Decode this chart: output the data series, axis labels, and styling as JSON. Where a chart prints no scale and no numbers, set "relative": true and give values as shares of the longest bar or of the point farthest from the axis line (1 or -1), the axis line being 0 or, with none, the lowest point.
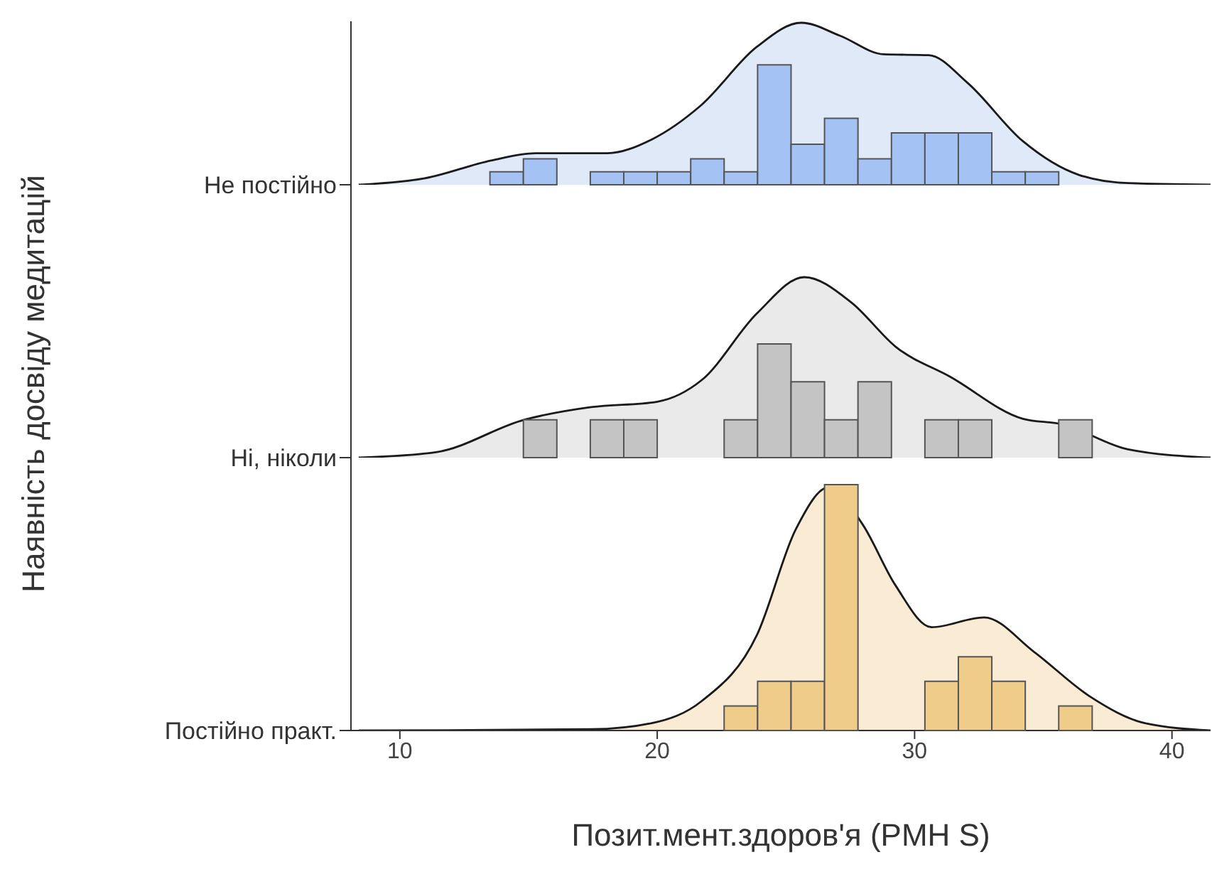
{
  "chart_data": [
    {
      "type": "area",
      "relative": true,
      "xlim": [
        8.1,
        41.5
      ],
      "tick_labels": "y",
      "ylabel": "Наявність досвіду медитацій",
      "series": [
        {
          "name": "Не постійно",
          "type": "area",
          "color": "#dae5f7",
          "x": [
            8.4,
            10.97,
            13.55,
            15.27,
            18.06,
            19.79,
            21.7,
            23.86,
            25.6,
            27.1,
            28.8,
            30.55,
            32.05,
            34.2,
            36.4,
            38.3,
            41.5
          ],
          "values": [
            0,
            0.04,
            0.15,
            0.195,
            0.195,
            0.28,
            0.49,
            0.85,
            1,
            0.92,
            0.805,
            0.8,
            0.63,
            0.27,
            0.06,
            0.01,
            0
          ]
        },
        {
          "type": "histogram",
          "color": "#a4c2f4",
          "bins": [
            12.2,
            13.5,
            14.8,
            16.1,
            17.4,
            18.7,
            20,
            21.3,
            22.6,
            23.9,
            25.2,
            26.5,
            27.8,
            29.1,
            30.4,
            31.7,
            33,
            34.3,
            35.6,
            36.9,
            38.2
          ],
          "values": [
            0,
            0.08,
            0.16,
            0,
            0.08,
            0.08,
            0.08,
            0.16,
            0.08,
            0.74,
            0.25,
            0.41,
            0.16,
            0.32,
            0.32,
            0.32,
            0.08,
            0.08,
            0,
            0
          ]
        }
      ]
    },
    {
      "type": "area",
      "relative": true,
      "xlim": [
        8.1,
        41.5
      ],
      "tick_labels": "y",
      "series": [
        {
          "name": "Ні, ніколи",
          "type": "area",
          "color": "#e6e6e6",
          "x": [
            8.4,
            11.4,
            14.84,
            17.43,
            20.0,
            21.73,
            23.88,
            25.71,
            27.54,
            29.26,
            31.42,
            34.21,
            35.72,
            38.3,
            41.5
          ],
          "values": [
            0,
            0.03,
            0.21,
            0.28,
            0.31,
            0.43,
            0.8,
            1,
            0.86,
            0.615,
            0.445,
            0.215,
            0.185,
            0.046,
            0
          ]
        },
        {
          "type": "histogram",
          "color": "#c4c4c4",
          "bins": [
            12.2,
            13.5,
            14.8,
            16.1,
            17.4,
            18.7,
            20,
            21.3,
            22.6,
            23.9,
            25.2,
            26.5,
            27.8,
            29.1,
            30.4,
            31.7,
            33,
            34.3,
            35.6,
            36.9,
            38.2
          ],
          "values": [
            0,
            0,
            0.21,
            0,
            0.21,
            0.21,
            0,
            0,
            0.21,
            0.63,
            0.42,
            0.21,
            0.42,
            0,
            0.21,
            0.21,
            0,
            0,
            0.21,
            0
          ]
        }
      ]
    },
    {
      "type": "area",
      "relative": true,
      "xlim": [
        8.1,
        41.5
      ],
      "xticks": [
        10,
        20,
        30,
        40
      ],
      "xlabel": "Позит.мент.здоров'я (PMH S)",
      "series": [
        {
          "name": "Постійно практ.",
          "type": "area",
          "color": "#f8e8cc",
          "x": [
            8.4,
            17.43,
            19.79,
            21.73,
            23.88,
            25.39,
            26.68,
            27.97,
            29.26,
            30.66,
            32.7,
            34.64,
            36.79,
            38.95,
            41.5
          ],
          "values": [
            0,
            0.005,
            0.03,
            0.12,
            0.39,
            0.82,
            0.99,
            0.84,
            0.59,
            0.42,
            0.46,
            0.32,
            0.14,
            0.03,
            0
          ]
        },
        {
          "type": "histogram",
          "color": "#efcc8a",
          "bins": [
            12.2,
            13.5,
            14.8,
            16.1,
            17.4,
            18.7,
            20,
            21.3,
            22.6,
            23.9,
            25.2,
            26.5,
            27.8,
            29.1,
            30.4,
            31.7,
            33,
            34.3,
            35.6,
            36.9,
            38.2
          ],
          "values": [
            0,
            0,
            0,
            0,
            0,
            0,
            0,
            0,
            0.1,
            0.2,
            0.2,
            1,
            0,
            0,
            0.2,
            0.3,
            0.2,
            0,
            0.1,
            0
          ]
        }
      ]
    }
  ]
}
